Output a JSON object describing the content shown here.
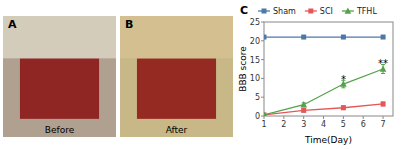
{
  "chart_data": [
    {
      "type": "image",
      "title": "A",
      "annotations": [
        {
          "text": "Before"
        }
      ]
    },
    {
      "type": "image",
      "title": "B",
      "annotations": [
        {
          "text": "After"
        }
      ]
    },
    {
      "type": "line",
      "title": "C",
      "xlabel": "Time(Day)",
      "ylabel": "BBB score",
      "x": [
        1,
        3,
        5,
        7
      ],
      "xlim": [
        1,
        7.5
      ],
      "ylim": [
        0,
        25
      ],
      "xticks": [
        1,
        2,
        3,
        4,
        5,
        6,
        7
      ],
      "yticks": [
        0,
        5,
        10,
        15,
        20,
        25
      ],
      "series": [
        {
          "name": "Sham",
          "color": "#4c78a8",
          "marker": "square",
          "values": [
            21,
            21,
            21,
            21
          ],
          "errors": [
            0.0,
            0.0,
            0.0,
            0.0
          ]
        },
        {
          "name": "SCI",
          "color": "#e45756",
          "marker": "square",
          "values": [
            0.3,
            1.5,
            2.2,
            3.2
          ],
          "errors": [
            0.1,
            0.4,
            0.5,
            0.5
          ]
        },
        {
          "name": "TFHL",
          "color": "#54a24b",
          "marker": "triangle",
          "values": [
            0.3,
            3.0,
            8.5,
            12.5
          ],
          "errors": [
            0.1,
            0.5,
            1.0,
            1.2
          ]
        }
      ],
      "annotations": [
        {
          "text": "*",
          "x": 5,
          "y": 9.8
        },
        {
          "text": "**",
          "x": 7,
          "y": 14.0
        }
      ],
      "legend": "top",
      "grid": false
    }
  ]
}
